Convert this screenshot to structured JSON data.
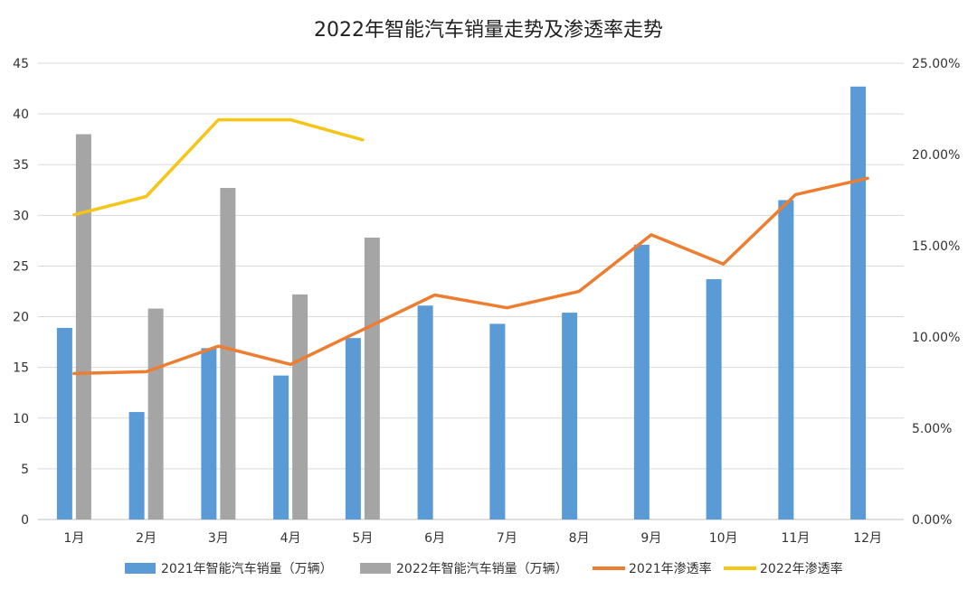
{
  "chart_data": {
    "type": "bar",
    "title": "2022年智能汽车销量走势及渗透率走势",
    "categories": [
      "1月",
      "2月",
      "3月",
      "4月",
      "5月",
      "6月",
      "7月",
      "8月",
      "9月",
      "10月",
      "11月",
      "12月"
    ],
    "ylim": [
      0,
      45
    ],
    "yticks": [
      0,
      5,
      10,
      15,
      20,
      25,
      30,
      35,
      40,
      45
    ],
    "y2lim": [
      0,
      0.25
    ],
    "y2ticks": [
      "0.00%",
      "5.00%",
      "10.00%",
      "15.00%",
      "20.00%",
      "25.00%"
    ],
    "series": [
      {
        "name": "2021年智能汽车销量（万辆）",
        "kind": "bar",
        "axis": "left",
        "color": "#5b9bd5",
        "values": [
          18.9,
          10.6,
          16.9,
          14.2,
          17.9,
          21.1,
          19.3,
          20.4,
          27.1,
          23.7,
          31.5,
          42.7
        ]
      },
      {
        "name": "2022年智能汽车销量（万辆）",
        "kind": "bar",
        "axis": "left",
        "color": "#a5a5a5",
        "values": [
          38.0,
          20.8,
          32.7,
          22.2,
          27.8,
          null,
          null,
          null,
          null,
          null,
          null,
          null
        ]
      },
      {
        "name": "2021年渗透率",
        "kind": "line",
        "axis": "right",
        "color": "#ed7d31",
        "values": [
          0.08,
          0.081,
          0.095,
          0.085,
          0.104,
          0.123,
          0.116,
          0.125,
          0.156,
          0.14,
          0.178,
          0.187
        ]
      },
      {
        "name": "2022年渗透率",
        "kind": "line",
        "axis": "right",
        "color": "#f5c518",
        "values": [
          0.167,
          0.177,
          0.219,
          0.219,
          0.208,
          null,
          null,
          null,
          null,
          null,
          null,
          null
        ]
      }
    ],
    "grid": true,
    "legend": "bottom"
  }
}
